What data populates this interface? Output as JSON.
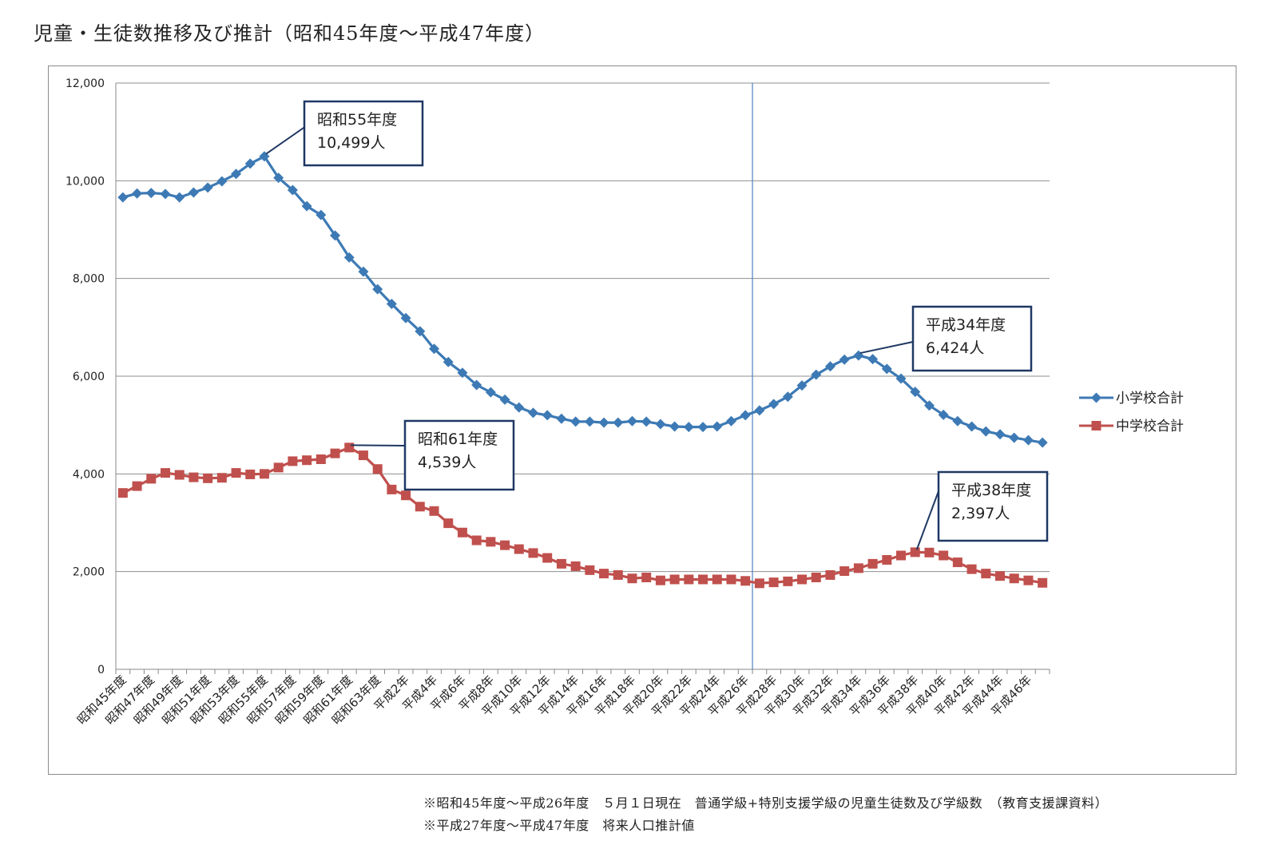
{
  "page": {
    "title": "児童・生徒数推移及び推計（昭和45年度～平成47年度）",
    "note1": "※昭和45年度～平成26年度　５月１日現在　普通学級+特別支援学級の児童生徒数及び学級数　（教育支援課資料）",
    "note2": "※平成27年度～平成47年度　将来人口推計値"
  },
  "chart_data": {
    "type": "line",
    "title": "児童・生徒数推移及び推計（昭和45年度～平成47年度）",
    "ylim": [
      0,
      12000
    ],
    "yticks": [
      0,
      2000,
      4000,
      6000,
      8000,
      10000,
      12000
    ],
    "ytick_labels": [
      "0",
      "2,000",
      "4,000",
      "6,000",
      "8,000",
      "10,000",
      "12,000"
    ],
    "grid": true,
    "legend_position": "right",
    "category_count": 66,
    "divider_after_category": 44,
    "tick_labels": [
      "昭和45年度",
      "昭和47年度",
      "昭和49年度",
      "昭和51年度",
      "昭和53年度",
      "昭和55年度",
      "昭和57年度",
      "昭和59年度",
      "昭和61年度",
      "昭和63年度",
      "平成2年",
      "平成4年",
      "平成6年",
      "平成8年",
      "平成10年",
      "平成12年",
      "平成14年",
      "平成16年",
      "平成18年",
      "平成20年",
      "平成22年",
      "平成24年",
      "平成26年",
      "平成28年",
      "平成30年",
      "平成32年",
      "平成34年",
      "平成36年",
      "平成38年",
      "平成40年",
      "平成42年",
      "平成44年",
      "平成46年"
    ],
    "series": [
      {
        "name": "小学校合計",
        "color": "#3d7ab5",
        "marker": "diamond",
        "values": [
          9660,
          9740,
          9750,
          9730,
          9660,
          9760,
          9860,
          9990,
          10140,
          10350,
          10499,
          10060,
          9810,
          9480,
          9300,
          8880,
          8430,
          8140,
          7780,
          7480,
          7190,
          6920,
          6560,
          6290,
          6070,
          5820,
          5670,
          5520,
          5360,
          5250,
          5200,
          5130,
          5070,
          5070,
          5050,
          5050,
          5080,
          5070,
          5020,
          4970,
          4960,
          4960,
          4970,
          5080,
          5200,
          5300,
          5430,
          5580,
          5810,
          6030,
          6200,
          6340,
          6424,
          6350,
          6150,
          5950,
          5680,
          5400,
          5210,
          5080,
          4970,
          4870,
          4810,
          4740,
          4690,
          4640
        ]
      },
      {
        "name": "中学校合計",
        "color": "#c0504d",
        "marker": "square",
        "values": [
          3610,
          3750,
          3900,
          4020,
          3980,
          3930,
          3910,
          3920,
          4020,
          3990,
          4000,
          4130,
          4260,
          4280,
          4300,
          4420,
          4539,
          4380,
          4100,
          3680,
          3560,
          3330,
          3240,
          2990,
          2800,
          2640,
          2610,
          2540,
          2460,
          2380,
          2280,
          2160,
          2110,
          2030,
          1960,
          1930,
          1860,
          1880,
          1820,
          1840,
          1840,
          1840,
          1840,
          1840,
          1810,
          1760,
          1780,
          1800,
          1840,
          1880,
          1930,
          2010,
          2070,
          2160,
          2240,
          2330,
          2397,
          2390,
          2330,
          2190,
          2050,
          1960,
          1910,
          1860,
          1820,
          1770
        ]
      }
    ],
    "annotations": [
      {
        "series": 0,
        "index": 10,
        "line1": "昭和55年度",
        "line2": "10,499人"
      },
      {
        "series": 1,
        "index": 16,
        "line1": "昭和61年度",
        "line2": "4,539人"
      },
      {
        "series": 0,
        "index": 52,
        "line1": "平成34年度",
        "line2": "6,424人"
      },
      {
        "series": 1,
        "index": 56,
        "line1": "平成38年度",
        "line2": "2,397人"
      }
    ]
  }
}
